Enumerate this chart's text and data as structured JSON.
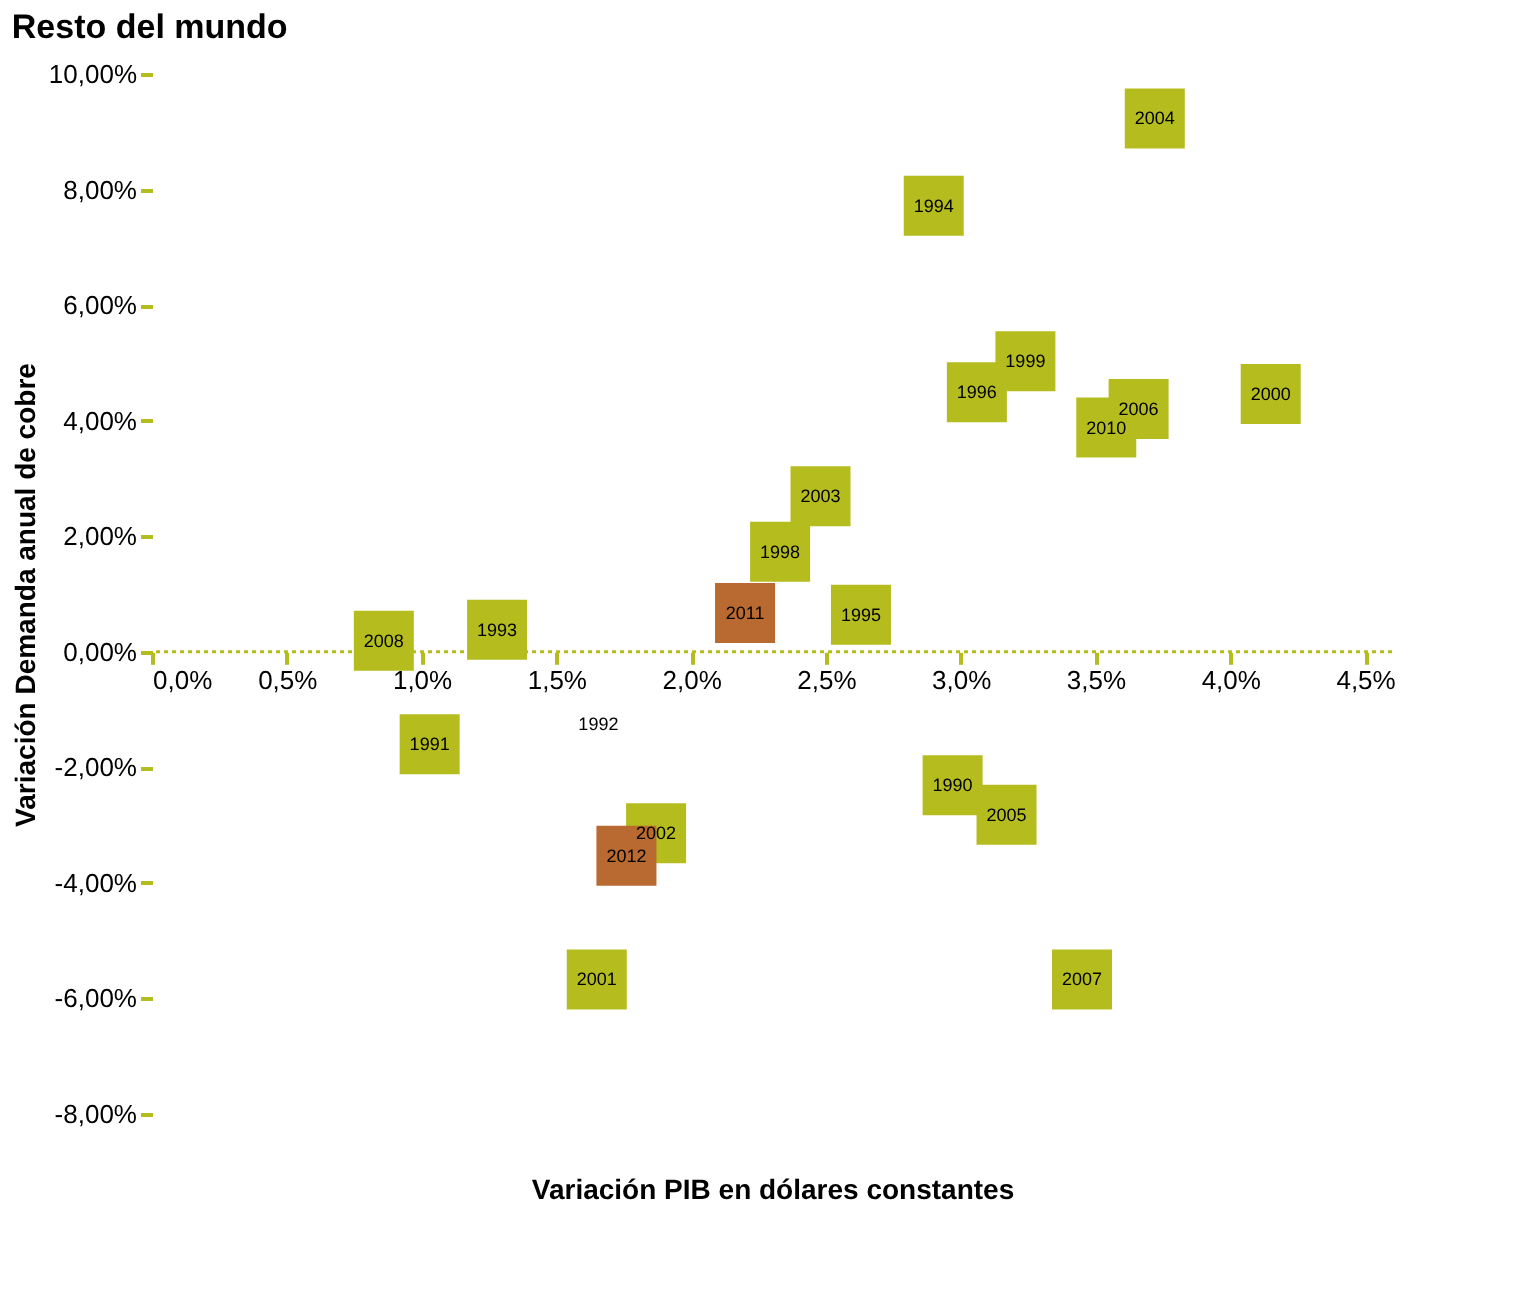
{
  "chart_data": {
    "type": "scatter",
    "title": "Resto del mundo",
    "xlabel": "Variación PIB en dólares constantes",
    "ylabel": "Variación Demanda anual de cobre",
    "marker": "square",
    "grid": false,
    "legend": false,
    "x": [
      3.72,
      2.9,
      3.24,
      3.06,
      3.66,
      3.54,
      4.15,
      2.48,
      2.33,
      2.2,
      2.63,
      1.28,
      0.86,
      1.03,
      2.97,
      3.17,
      1.87,
      1.76,
      1.65,
      3.45
    ],
    "values": [
      9.23,
      7.72,
      5.03,
      4.49,
      4.2,
      3.88,
      4.46,
      2.69,
      1.73,
      0.67,
      0.64,
      0.38,
      0.19,
      -1.6,
      -2.31,
      -2.82,
      -3.14,
      -3.53,
      -5.67,
      -5.67
    ],
    "colors": [
      "#b5bd1e",
      "#b5bd1e",
      "#b5bd1e",
      "#b5bd1e",
      "#b5bd1e",
      "#b5bd1e",
      "#b5bd1e",
      "#b5bd1e",
      "#b5bd1e",
      "#b86a30",
      "#b5bd1e",
      "#b5bd1e",
      "#b5bd1e",
      "#b5bd1e",
      "#b5bd1e",
      "#b5bd1e",
      "#b5bd1e",
      "#b86a30",
      "#b5bd1e",
      "#b5bd1e"
    ],
    "annotations": [
      {
        "text": "2004",
        "x": 3.72,
        "y": 9.23
      },
      {
        "text": "1994",
        "x": 2.9,
        "y": 7.72
      },
      {
        "text": "1999",
        "x": 3.24,
        "y": 5.03
      },
      {
        "text": "1996",
        "x": 3.06,
        "y": 4.49
      },
      {
        "text": "2006",
        "x": 3.66,
        "y": 4.2
      },
      {
        "text": "2010",
        "x": 3.54,
        "y": 3.88
      },
      {
        "text": "2000",
        "x": 4.15,
        "y": 4.46
      },
      {
        "text": "2003",
        "x": 2.48,
        "y": 2.69
      },
      {
        "text": "1998",
        "x": 2.33,
        "y": 1.73
      },
      {
        "text": "2011",
        "x": 2.2,
        "y": 0.67
      },
      {
        "text": "1995",
        "x": 2.63,
        "y": 0.64
      },
      {
        "text": "1993",
        "x": 1.28,
        "y": 0.38
      },
      {
        "text": "2008",
        "x": 0.86,
        "y": 0.19
      },
      "1992",
      {
        "text": "1991",
        "x": 1.03,
        "y": -1.6
      },
      {
        "text": "1990",
        "x": 2.97,
        "y": -2.31
      },
      {
        "text": "2005",
        "x": 3.17,
        "y": -2.82
      },
      {
        "text": "2002",
        "x": 1.87,
        "y": -3.14
      },
      {
        "text": "2012",
        "x": 1.76,
        "y": -3.53
      },
      {
        "text": "2001",
        "x": 1.65,
        "y": -5.67
      },
      {
        "text": "2007",
        "x": 3.45,
        "y": -5.67
      }
    ],
    "ref_lines": [
      {
        "axis": "y",
        "value": 0,
        "color": "#b5bd1e",
        "line_style": "dotted"
      }
    ],
    "xlim": [
      0,
      4.6
    ],
    "ylim": [
      -8,
      10
    ],
    "xticks": [
      {
        "value": 0,
        "label": "0,0%"
      },
      {
        "value": 0.5,
        "label": "0,5%"
      },
      {
        "value": 1,
        "label": "1,0%"
      },
      {
        "value": 1.5,
        "label": "1,5%"
      },
      {
        "value": 2,
        "label": "2,0%"
      },
      {
        "value": 2.5,
        "label": "2,5%"
      },
      {
        "value": 3,
        "label": "3,0%"
      },
      {
        "value": 3.5,
        "label": "3,5%"
      },
      {
        "value": 4,
        "label": "4,0%"
      },
      {
        "value": 4.5,
        "label": "4,5%"
      }
    ],
    "yticks": [
      {
        "value": -8,
        "label": "-8,00%"
      },
      {
        "value": -6,
        "label": "-6,00%"
      },
      {
        "value": -4,
        "label": "-4,00%"
      },
      {
        "value": -2,
        "label": "-2,00%"
      },
      {
        "value": 0,
        "label": "0,00%"
      },
      {
        "value": 2,
        "label": "2,00%"
      },
      {
        "value": 4,
        "label": "4,00%"
      },
      {
        "value": 6,
        "label": "6,00%"
      },
      {
        "value": 8,
        "label": "8,00%"
      },
      {
        "value": 10,
        "label": "10,00%"
      }
    ]
  }
}
